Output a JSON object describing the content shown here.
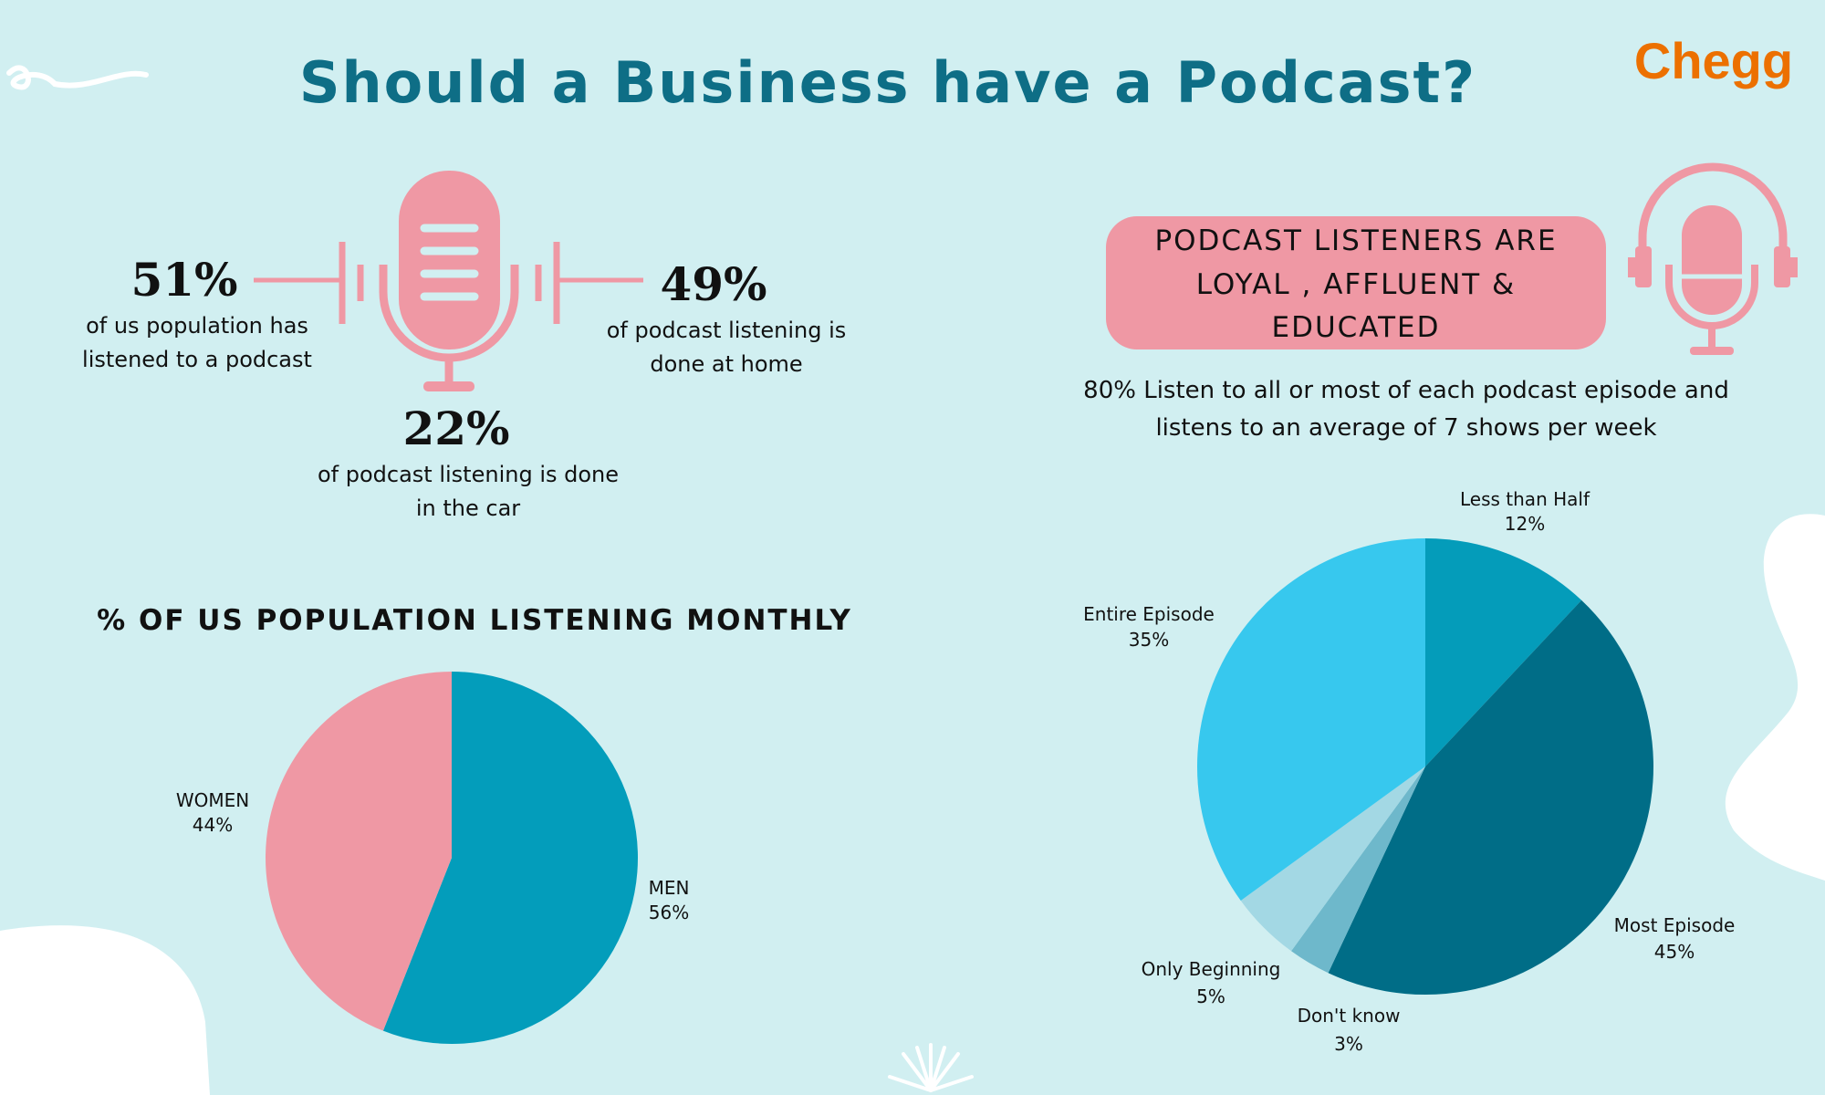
{
  "title": "Should a Business have a Podcast?",
  "logo": "Chegg",
  "colors": {
    "background": "#d1eff1",
    "title": "#0e6e86",
    "pink": "#ef98a4",
    "logo": "#ec7000"
  },
  "stats": [
    {
      "value": "51%",
      "lines": [
        "of us population has",
        "listened to a podcast"
      ]
    },
    {
      "value": "49%",
      "lines": [
        "of podcast listening is",
        "done at home"
      ]
    },
    {
      "value": "22%",
      "lines": [
        "of podcast listening is done",
        "in the car"
      ]
    }
  ],
  "callout": {
    "lines": [
      "PODCAST LISTENERS ARE",
      "LOYAL , AFFLUENT &",
      "EDUCATED"
    ]
  },
  "note": {
    "lines": [
      "80% Listen to all or most of each podcast episode and",
      "listens to an average of 7 shows per week"
    ]
  },
  "icons": [
    "microphone-icon",
    "headphones-microphone-icon"
  ],
  "chart_data": [
    {
      "type": "pie",
      "title": "% OF US POPULATION LISTENING MONTHLY",
      "start": "top, clockwise",
      "slices": [
        {
          "label": "MEN",
          "value": 56,
          "value_label": "56%",
          "color": "#039dbb"
        },
        {
          "label": "WOMEN",
          "value": 44,
          "value_label": "44%",
          "color": "#ef98a4"
        }
      ]
    },
    {
      "type": "pie",
      "title": "",
      "start": "top, clockwise",
      "slices": [
        {
          "label": "Less than Half",
          "value": 12,
          "value_label": "12%",
          "color": "#049cba"
        },
        {
          "label": "Most Episode",
          "value": 45,
          "value_label": "45%",
          "color": "#006d87"
        },
        {
          "label": "Don't know",
          "value": 3,
          "value_label": "3%",
          "color": "#6eb8cb"
        },
        {
          "label": "Only Beginning",
          "value": 5,
          "value_label": "5%",
          "color": "#a3d8e4"
        },
        {
          "label": "Entire Episode",
          "value": 35,
          "value_label": "35%",
          "color": "#37c8ee"
        }
      ]
    }
  ]
}
